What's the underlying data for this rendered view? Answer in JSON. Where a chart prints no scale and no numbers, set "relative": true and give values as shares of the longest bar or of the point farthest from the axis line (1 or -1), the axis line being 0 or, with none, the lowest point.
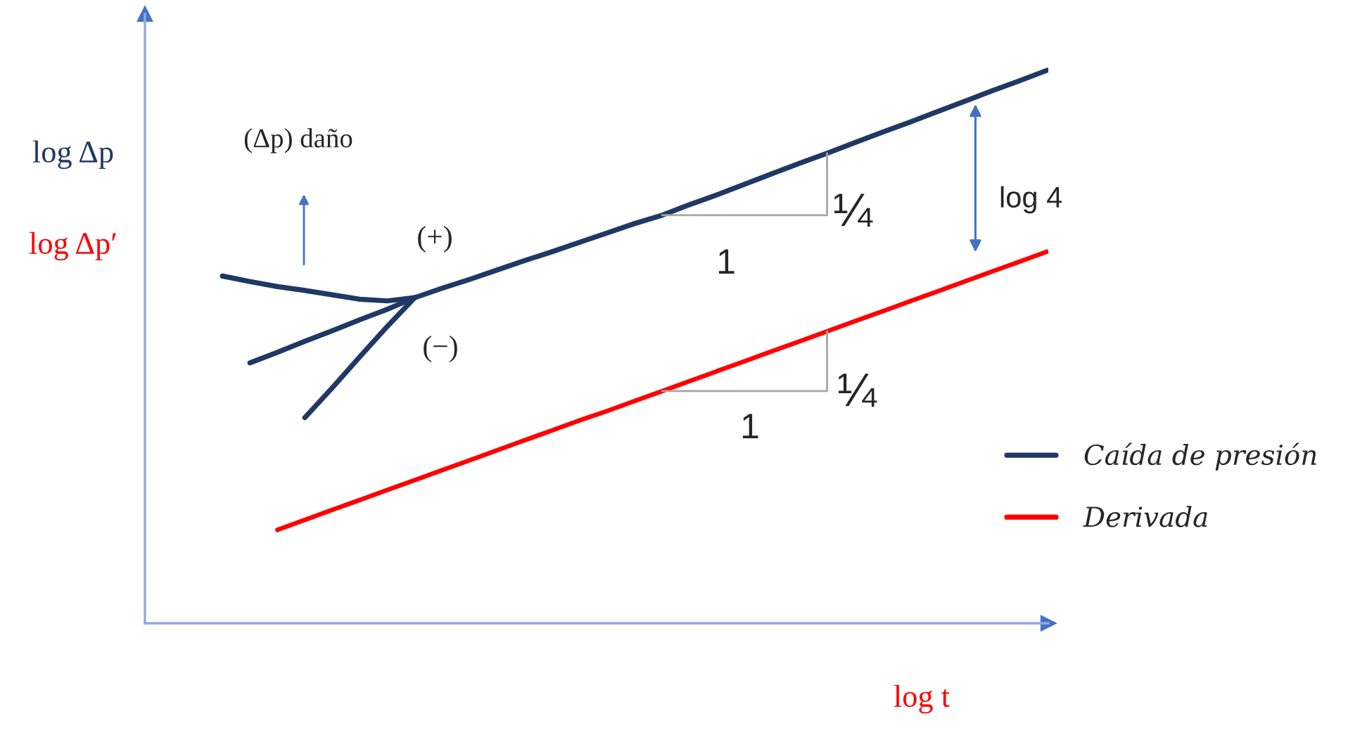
{
  "chart_data": {
    "type": "line",
    "relative": true,
    "legend": "bottom right",
    "xlabel": "log t",
    "ylabel": "log Δp\nlog Δp′",
    "categories": [
      null,
      null,
      null,
      null,
      null,
      null,
      null,
      null,
      null,
      null,
      null,
      null,
      null,
      null,
      null,
      null,
      null,
      null,
      null,
      null,
      null,
      null,
      null,
      null,
      null,
      null,
      null,
      null,
      null,
      null,
      null
    ],
    "series": [
      {
        "name": "Caída de presión",
        "color": "#203864",
        "values": [
          0.628,
          0.618,
          0.609,
          0.602,
          0.594,
          0.586,
          0.583,
          0.589,
          0.606,
          0.622,
          0.639,
          0.656,
          0.672,
          0.689,
          0.706,
          0.723,
          0.738,
          0.757,
          0.775,
          0.794,
          0.813,
          0.832,
          0.85,
          0.869,
          0.888,
          0.906,
          0.925,
          0.944,
          0.963,
          0.981,
          1.0
        ]
      },
      {
        "name": "Derivada",
        "color": "#ff0000",
        "values": [
          null,
          null,
          0.169,
          0.187,
          0.205,
          0.223,
          0.241,
          0.259,
          0.277,
          0.295,
          0.313,
          0.331,
          0.349,
          0.367,
          0.384,
          0.402,
          0.42,
          0.438,
          0.456,
          0.474,
          0.492,
          0.51,
          0.528,
          0.546,
          0.564,
          0.582,
          0.6,
          0.618,
          0.636,
          0.654,
          0.672
        ]
      },
      {
        "color": "#203864",
        "values": [
          null,
          0.471,
          0.49,
          0.51,
          0.529,
          0.549,
          0.568,
          0.589,
          null,
          null,
          null,
          null,
          null,
          null,
          null,
          null,
          null,
          null,
          null,
          null,
          null,
          null,
          null,
          null,
          null,
          null,
          null,
          null,
          null,
          null,
          null
        ]
      },
      {
        "color": "#203864",
        "values": [
          null,
          null,
          null,
          0.372,
          0.426,
          0.482,
          0.537,
          0.589,
          null,
          null,
          null,
          null,
          null,
          null,
          null,
          null,
          null,
          null,
          null,
          null,
          null,
          null,
          null,
          null,
          null,
          null,
          null,
          null,
          null,
          null,
          null
        ]
      }
    ],
    "annotations": [
      "(Δp) daño",
      "(+)",
      "(−)",
      "1",
      "¼",
      "log 4",
      "1",
      "¼"
    ]
  }
}
